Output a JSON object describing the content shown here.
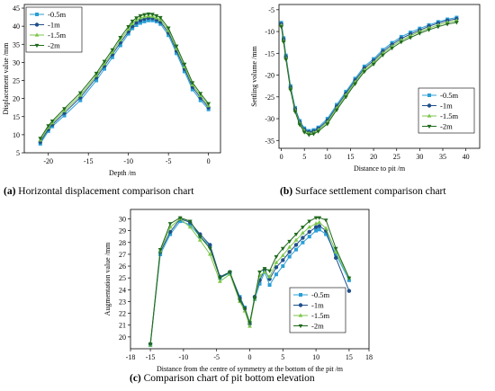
{
  "chart_data": [
    {
      "type": "line",
      "caption_tag": "(a)",
      "caption_text": " Horizontal displacement comparison chart",
      "xlabel": "Depth /m",
      "ylabel": "Displacement value /mm",
      "xlim": [
        -23,
        1.5
      ],
      "ylim": [
        5,
        46
      ],
      "xticks": [
        -20,
        -15,
        -10,
        -5,
        0
      ],
      "yticks": [
        5,
        10,
        15,
        20,
        25,
        30,
        35,
        40,
        45
      ],
      "ytick_labels": [
        "5",
        "10",
        "15",
        "20",
        "25",
        "30",
        "35",
        "40",
        "45"
      ],
      "legend_position": "top-left",
      "x": [
        -21,
        -20,
        -19.5,
        -18,
        -16,
        -14,
        -13,
        -12,
        -11,
        -10,
        -9.5,
        -9,
        -8.5,
        -8,
        -7.5,
        -7,
        -6.5,
        -6,
        -5,
        -4,
        -3,
        -2,
        -1,
        0
      ],
      "series": [
        {
          "name": "-0.5m",
          "values": [
            7.5,
            11,
            12.3,
            15.3,
            19.5,
            25,
            28.2,
            31.4,
            34.7,
            37.9,
            39.4,
            40.3,
            40.9,
            41.3,
            41.6,
            41.6,
            41.3,
            40.6,
            37.5,
            32.5,
            27.5,
            22.5,
            19.5,
            17
          ]
        },
        {
          "name": "-1m",
          "values": [
            8,
            11.5,
            12.8,
            16,
            20.3,
            25.8,
            29,
            32.2,
            35.5,
            38.5,
            40,
            41,
            41.6,
            42,
            42.3,
            42.2,
            41.8,
            41.2,
            38.2,
            33.2,
            28.2,
            23.2,
            20.2,
            17.5
          ]
        },
        {
          "name": "-1.5m",
          "values": [
            8.5,
            12,
            13.3,
            16.6,
            20.9,
            26.4,
            29.6,
            32.8,
            36.2,
            39.2,
            40.7,
            41.7,
            42.3,
            42.6,
            42.8,
            42.7,
            42.3,
            41.8,
            38.8,
            33.8,
            28.8,
            23.8,
            20.8,
            18
          ]
        },
        {
          "name": "-2m",
          "values": [
            9,
            12.5,
            13.8,
            17.2,
            21.6,
            27,
            30.3,
            33.5,
            36.9,
            39.9,
            41.4,
            42.3,
            42.9,
            43.2,
            43.4,
            43.3,
            42.9,
            42.4,
            39.5,
            34.5,
            29.5,
            24.4,
            21.4,
            18.6
          ]
        }
      ]
    },
    {
      "type": "line",
      "caption_tag": "(b)",
      "caption_text": " Surface settlement comparison chart",
      "xlabel": "Distance to pit /m",
      "ylabel": "Settling volume /mm",
      "xlim": [
        -0.5,
        43
      ],
      "ylim": [
        -36.8,
        -3.8
      ],
      "xticks": [
        0,
        5,
        10,
        15,
        20,
        25,
        30,
        35,
        40
      ],
      "yticks": [
        -35,
        -30,
        -25,
        -20,
        -15,
        -10,
        -5
      ],
      "legend_position": "bottom-right",
      "x": [
        0,
        0.5,
        1,
        2,
        3,
        4,
        5,
        6,
        7,
        8,
        10,
        12,
        14,
        16,
        18,
        20,
        22,
        24,
        26,
        28,
        30,
        32,
        34,
        36,
        38
      ],
      "series": [
        {
          "name": "-0.5m",
          "values": [
            -8,
            -11.5,
            -15.5,
            -22.5,
            -27.5,
            -30.5,
            -32.2,
            -32.8,
            -32.6,
            -32,
            -30,
            -26.8,
            -23.8,
            -20.8,
            -18,
            -16.3,
            -14.2,
            -12.6,
            -11.2,
            -10.2,
            -9.3,
            -8.5,
            -7.8,
            -7.2,
            -6.8
          ]
        },
        {
          "name": "-1m",
          "values": [
            -8.3,
            -11.8,
            -15.8,
            -22.8,
            -27.8,
            -30.8,
            -32.5,
            -33.1,
            -32.9,
            -32.3,
            -30.4,
            -27.2,
            -24.2,
            -21.2,
            -18.4,
            -16.7,
            -14.6,
            -13,
            -11.6,
            -10.6,
            -9.7,
            -8.8,
            -8.1,
            -7.5,
            -7.1
          ]
        },
        {
          "name": "-1.5m",
          "values": [
            -8.6,
            -12.1,
            -16.1,
            -23.1,
            -28.1,
            -31.1,
            -32.8,
            -33.4,
            -33.2,
            -32.6,
            -30.8,
            -27.6,
            -24.6,
            -21.6,
            -18.8,
            -17.1,
            -15,
            -13.4,
            -12,
            -11,
            -10,
            -9.2,
            -8.5,
            -7.9,
            -7.5
          ]
        },
        {
          "name": "-2m",
          "values": [
            -8.9,
            -12.4,
            -16.4,
            -23.4,
            -28.4,
            -31.4,
            -33.1,
            -33.7,
            -33.5,
            -32.9,
            -31.2,
            -28,
            -25,
            -22,
            -19.2,
            -17.5,
            -15.4,
            -13.8,
            -12.4,
            -11.4,
            -10.4,
            -9.6,
            -8.9,
            -8.3,
            -7.9
          ]
        }
      ]
    },
    {
      "type": "line",
      "caption_tag": "(c)",
      "caption_text": " Comparison chart of pit bottom elevation",
      "xlabel": "Distance from the centre of symmetry at the bottom of the pit /m",
      "ylabel": "Augmentation value /mm",
      "xlim": [
        -18,
        18
      ],
      "ylim": [
        19,
        30.8
      ],
      "xticks": [
        -18,
        -15,
        -10,
        -5,
        0,
        5,
        10,
        15,
        18
      ],
      "yticks": [
        20,
        21,
        22,
        23,
        24,
        25,
        26,
        27,
        28,
        29,
        30
      ],
      "legend_position": "bottom-right",
      "x": [
        -15,
        -13.5,
        -12,
        -10.5,
        -9,
        -7.5,
        -6,
        -4.5,
        -3,
        -1.5,
        -0.75,
        0,
        0.75,
        1.5,
        2.25,
        3,
        4,
        5,
        6,
        7,
        8,
        9,
        10,
        10.5,
        11.5,
        13,
        15
      ],
      "series": [
        {
          "name": "-0.5m",
          "values": [
            19.3,
            27,
            28.7,
            29.8,
            29.5,
            28.5,
            27.7,
            25,
            25.4,
            23.4,
            22.5,
            21.2,
            23.2,
            24.5,
            25.5,
            24.4,
            25.3,
            26,
            26.8,
            27.4,
            28,
            28.5,
            29,
            29.1,
            28.7,
            27,
            24.8
          ]
        },
        {
          "name": "-1m",
          "values": [
            19.4,
            27.2,
            28.9,
            30,
            29.7,
            28.7,
            27.8,
            25.1,
            25.5,
            23.3,
            22.4,
            21.1,
            23.4,
            24.8,
            25.7,
            24.9,
            25.9,
            26.5,
            27.2,
            27.8,
            28.4,
            28.9,
            29.3,
            29.4,
            29,
            26.7,
            23.9
          ]
        },
        {
          "name": "-1.5m",
          "values": [
            19.3,
            27.3,
            29.3,
            30,
            29.3,
            28.2,
            27,
            24.7,
            25.3,
            23,
            22.2,
            20.9,
            23.2,
            25.2,
            25.5,
            25.1,
            26.3,
            26.9,
            27.6,
            28.2,
            28.8,
            29.3,
            29.6,
            29.7,
            29.2,
            27.2,
            25
          ]
        },
        {
          "name": "-2m",
          "values": [
            19.4,
            27.4,
            29.6,
            30.1,
            29.8,
            28.5,
            27.5,
            25,
            25.5,
            23.1,
            22.4,
            21.2,
            23.3,
            25.5,
            25.8,
            25.6,
            26.8,
            27.5,
            28.1,
            28.7,
            29.3,
            29.8,
            30.1,
            30.1,
            29.9,
            27.5,
            25
          ]
        }
      ]
    }
  ],
  "colors": {
    "-0.5m": "#2a9fd6",
    "-1m": "#1f4f8a",
    "-1.5m": "#7dc64c",
    "-2m": "#1f6a1c",
    "axis": "#000000"
  }
}
